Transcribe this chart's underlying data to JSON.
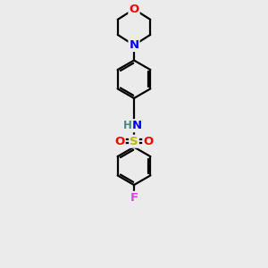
{
  "bg_color": "#ebebeb",
  "bond_color": "#000000",
  "bond_width": 1.6,
  "atom_colors": {
    "O": "#ff0000",
    "N": "#0000ff",
    "S": "#b8b800",
    "F": "#dd44dd",
    "H": "#448888",
    "C": "#000000"
  },
  "font_size": 9.5,
  "scale": 1.0
}
